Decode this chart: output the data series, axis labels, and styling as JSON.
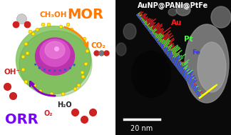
{
  "left_panel": {
    "mor_text": "MOR",
    "mor_color": "#ff7700",
    "orr_text": "ORR",
    "orr_color": "#7700ff",
    "ch3oh_text": "CH₃OH",
    "co2_text": "CO₂",
    "oh_text": "OH⁻",
    "h2o_text": "H₂O",
    "o2_text": "O₂",
    "shell_color": "#88c866",
    "core_color_outer": "#cc44bb",
    "core_color_inner": "#ee66dd",
    "dot_color": "#ffee00",
    "arrow_color_orange": "#ff8800",
    "arrow_color_purple": "#8800cc",
    "blue_ring_color": "#3355cc"
  },
  "right_panel": {
    "title_text": "AuNP@PANI@PtFe",
    "title_color": "#ffffff",
    "au_color": "#ff2020",
    "pt_color": "#44ff44",
    "fe_color": "#3333ff",
    "scale_bar_text": "20 nm",
    "scale_bar_color": "#ffffff",
    "yellow_line_color": "#ffff00"
  }
}
